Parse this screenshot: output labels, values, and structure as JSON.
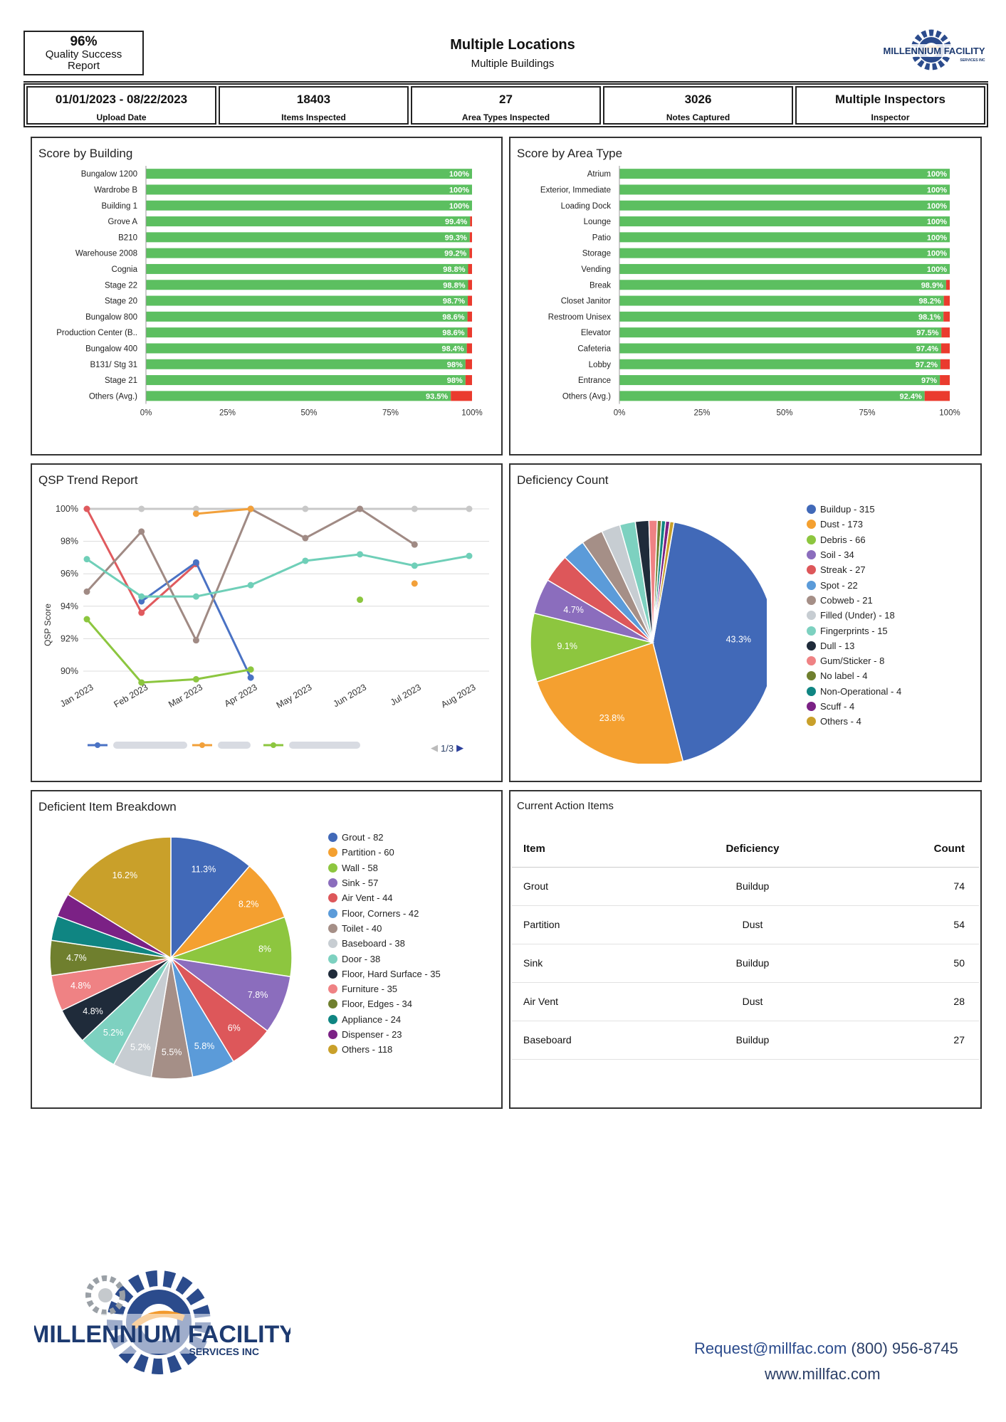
{
  "header": {
    "quality_pct": "96%",
    "quality_label_1": "Quality Success",
    "quality_label_2": "Report",
    "title": "Multiple Locations",
    "subtitle": "Multiple Buildings"
  },
  "logo_small": {
    "line1": "MILLENNIUM FACILITY",
    "line2": "SERVICES INC"
  },
  "stats": [
    {
      "value": "01/01/2023 - 08/22/2023",
      "label": "Upload Date"
    },
    {
      "value": "18403",
      "label": "Items Inspected"
    },
    {
      "value": "27",
      "label": "Area Types Inspected"
    },
    {
      "value": "3026",
      "label": "Notes Captured"
    },
    {
      "value": "Multiple Inspectors",
      "label": "Inspector"
    }
  ],
  "panels": {
    "score_building": "Score by Building",
    "score_area": "Score by Area Type",
    "qsp_trend": "QSP Trend Report",
    "deficiency_count": "Deficiency Count",
    "deficient_breakdown": "Deficient Item Breakdown",
    "action_items": "Current Action Items"
  },
  "chart_data": [
    {
      "type": "bar",
      "title": "Score by Building",
      "orientation": "horizontal",
      "stacked": true,
      "categories": [
        "Bungalow 1200",
        "Wardrobe B",
        "Building 1",
        "Grove A",
        "B210",
        "Warehouse 2008",
        "Cognia",
        "Stage 22",
        "Stage 20",
        "Bungalow 800",
        "Production Center (B..",
        "Bungalow 400",
        "B131/ Stg 31",
        "Stage 21",
        "Others (Avg.)"
      ],
      "values": [
        100,
        100,
        100,
        99.4,
        99.3,
        99.2,
        98.8,
        98.8,
        98.7,
        98.6,
        98.6,
        98.4,
        98,
        98,
        93.5
      ],
      "labels": [
        "100%",
        "100%",
        "100%",
        "99.4%",
        "99.3%",
        "99.2%",
        "98.8%",
        "98.8%",
        "98.7%",
        "98.6%",
        "98.6%",
        "98.4%",
        "98%",
        "98%",
        "93.5%"
      ],
      "xticks": [
        "0%",
        "25%",
        "50%",
        "75%",
        "100%"
      ],
      "xlim": [
        0,
        100
      ],
      "colors": {
        "pass": "#5cbf60",
        "fail": "#ea3b2e"
      }
    },
    {
      "type": "bar",
      "title": "Score by Area Type",
      "orientation": "horizontal",
      "stacked": true,
      "categories": [
        "Atrium",
        "Exterior, Immediate",
        "Loading Dock",
        "Lounge",
        "Patio",
        "Storage",
        "Vending",
        "Break",
        "Closet Janitor",
        "Restroom Unisex",
        "Elevator",
        "Cafeteria",
        "Lobby",
        "Entrance",
        "Others (Avg.)"
      ],
      "values": [
        100,
        100,
        100,
        100,
        100,
        100,
        100,
        98.9,
        98.2,
        98.1,
        97.5,
        97.4,
        97.2,
        97,
        92.4
      ],
      "labels": [
        "100%",
        "100%",
        "100%",
        "100%",
        "100%",
        "100%",
        "100%",
        "98.9%",
        "98.2%",
        "98.1%",
        "97.5%",
        "97.4%",
        "97.2%",
        "97%",
        "92.4%"
      ],
      "xticks": [
        "0%",
        "25%",
        "50%",
        "75%",
        "100%"
      ],
      "xlim": [
        0,
        100
      ],
      "colors": {
        "pass": "#5cbf60",
        "fail": "#ea3b2e"
      }
    },
    {
      "type": "line",
      "title": "QSP Trend Report",
      "ylabel": "QSP Score",
      "categories": [
        "Jan 2023",
        "Feb 2023",
        "Mar 2023",
        "Apr 2023",
        "May 2023",
        "Jun 2023",
        "Jul 2023",
        "Aug 2023"
      ],
      "yticks": [
        "100%",
        "98%",
        "96%",
        "94%",
        "92%",
        "90%"
      ],
      "ylim": [
        89,
        100.3
      ],
      "legend_page": "1/3",
      "series": [
        {
          "color": "#c8c8c8",
          "values": [
            100,
            100,
            100,
            100,
            100,
            100,
            100,
            100
          ]
        },
        {
          "color": "#e05a5e",
          "values": [
            100,
            93.6,
            96.6,
            null,
            null,
            null,
            null,
            null
          ]
        },
        {
          "color": "#4a72c4",
          "values": [
            null,
            94.3,
            96.7,
            89.6,
            null,
            null,
            null,
            null
          ]
        },
        {
          "color": "#a08a84",
          "values": [
            94.9,
            98.6,
            91.9,
            100,
            98.2,
            100,
            97.8,
            null
          ]
        },
        {
          "color": "#6fcfb8",
          "values": [
            96.9,
            94.6,
            94.6,
            95.3,
            96.8,
            97.2,
            96.5,
            97.1
          ]
        },
        {
          "color": "#f2a03a",
          "values": [
            null,
            null,
            99.7,
            100,
            null,
            null,
            95.4,
            null
          ]
        },
        {
          "color": "#8cc63f",
          "values": [
            93.2,
            89.3,
            89.5,
            90.1,
            null,
            94.4,
            null,
            null
          ]
        }
      ]
    },
    {
      "type": "pie",
      "title": "Deficiency Count",
      "labels": [
        "Buildup - 315",
        "Dust - 173",
        "Debris - 66",
        "Soil - 34",
        "Streak - 27",
        "Spot - 22",
        "Cobweb - 21",
        "Filled (Under) - 18",
        "Fingerprints - 15",
        "Dull - 13",
        "Gum/Sticker - 8",
        "No label - 4",
        "Non-Operational - 4",
        "Scuff - 4",
        "Others - 4"
      ],
      "values": [
        315,
        173,
        66,
        34,
        27,
        22,
        21,
        18,
        15,
        13,
        8,
        4,
        4,
        4,
        4
      ],
      "slice_labels": [
        "43.3%",
        "23.8%",
        "9.1%",
        "4.7%",
        "",
        "",
        "",
        "",
        "",
        "",
        "",
        "",
        "",
        "",
        ""
      ],
      "colors": [
        "#4169b8",
        "#f4a030",
        "#8dc63f",
        "#8b6dbd",
        "#dd575a",
        "#5b9bd9",
        "#a58f87",
        "#c7cdd2",
        "#7dd1c0",
        "#1f2b3a",
        "#ef8284",
        "#6f7f2e",
        "#0f8582",
        "#7b2185",
        "#c9a02a"
      ]
    },
    {
      "type": "pie",
      "title": "Deficient Item Breakdown",
      "labels": [
        "Grout - 82",
        "Partition - 60",
        "Wall - 58",
        "Sink - 57",
        "Air Vent - 44",
        "Floor, Corners - 42",
        "Toilet - 40",
        "Baseboard - 38",
        "Door - 38",
        "Floor, Hard Surface - 35",
        "Furniture - 35",
        "Floor, Edges - 34",
        "Appliance - 24",
        "Dispenser - 23",
        "Others - 118"
      ],
      "values": [
        82,
        60,
        58,
        57,
        44,
        42,
        40,
        38,
        38,
        35,
        35,
        34,
        24,
        23,
        118
      ],
      "slice_labels": [
        "11.3%",
        "8.2%",
        "8%",
        "7.8%",
        "6%",
        "5.8%",
        "5.5%",
        "5.2%",
        "5.2%",
        "4.8%",
        "4.8%",
        "4.7%",
        "",
        "",
        "16.2%"
      ],
      "colors": [
        "#4169b8",
        "#f4a030",
        "#8dc63f",
        "#8b6dbd",
        "#dd575a",
        "#5b9bd9",
        "#a58f87",
        "#c7cdd2",
        "#7dd1c0",
        "#1f2b3a",
        "#ef8284",
        "#6f7f2e",
        "#0f8582",
        "#7b2185",
        "#c9a02a"
      ]
    }
  ],
  "action_items": {
    "headers": [
      "Item",
      "Deficiency",
      "Count"
    ],
    "rows": [
      {
        "item": "Grout",
        "deficiency": "Buildup",
        "count": "74"
      },
      {
        "item": "Partition",
        "deficiency": "Dust",
        "count": "54"
      },
      {
        "item": "Sink",
        "deficiency": "Buildup",
        "count": "50"
      },
      {
        "item": "Air Vent",
        "deficiency": "Dust",
        "count": "28"
      },
      {
        "item": "Baseboard",
        "deficiency": "Buildup",
        "count": "27"
      }
    ]
  },
  "footer": {
    "logo_line1": "MILLENNIUM FACILITY",
    "logo_line2": "SERVICES INC",
    "email": "Request@millfac.com",
    "phone": "(800) 956-8745",
    "website": "www.millfac.com"
  }
}
